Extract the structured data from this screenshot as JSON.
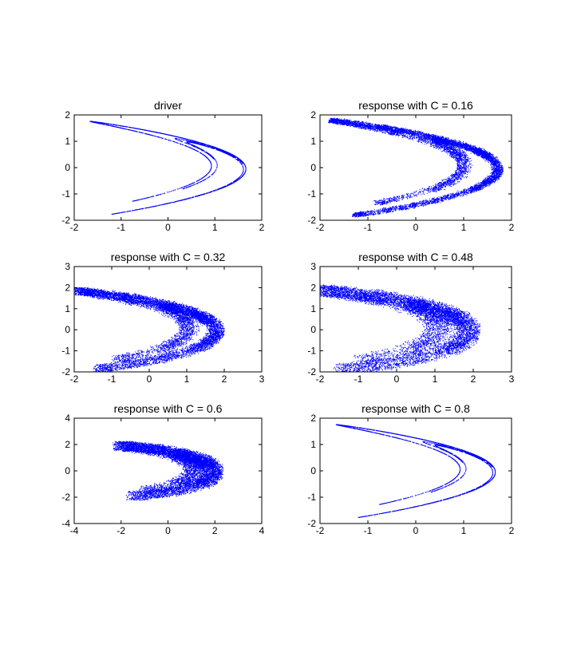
{
  "chart_data": [
    {
      "type": "scatter",
      "title": "driver",
      "xlim": [
        -2,
        2
      ],
      "ylim": [
        -2,
        2
      ],
      "xticks": [
        "-2",
        "-1",
        "0",
        "1",
        "2"
      ],
      "yticks": [
        "-2",
        "-1",
        "0",
        "1",
        "2"
      ],
      "color": "#0000ff",
      "attractor": {
        "a": 1.4,
        "b": 0.3,
        "spread": 0.0
      }
    },
    {
      "type": "scatter",
      "title": "response with C = 0.16",
      "xlim": [
        -2,
        2
      ],
      "ylim": [
        -2,
        2
      ],
      "xticks": [
        "-2",
        "-1",
        "0",
        "1",
        "2"
      ],
      "yticks": [
        "-2",
        "-1",
        "0",
        "1",
        "2"
      ],
      "color": "#0000ff",
      "attractor": {
        "a": 1.4,
        "b": 0.3,
        "spread": 0.12
      }
    },
    {
      "type": "scatter",
      "title": "response with C = 0.32",
      "xlim": [
        -2,
        3
      ],
      "ylim": [
        -2,
        3
      ],
      "xticks": [
        "-2",
        "-1",
        "0",
        "1",
        "2",
        "3"
      ],
      "yticks": [
        "-2",
        "-1",
        "0",
        "1",
        "2",
        "3"
      ],
      "color": "#0000ff",
      "attractor": {
        "a": 1.4,
        "b": 0.3,
        "spread": 0.25
      }
    },
    {
      "type": "scatter",
      "title": "response with C = 0.48",
      "xlim": [
        -2,
        3
      ],
      "ylim": [
        -2,
        3
      ],
      "xticks": [
        "-2",
        "-1",
        "0",
        "1",
        "2",
        "3"
      ],
      "yticks": [
        "-2",
        "-1",
        "0",
        "1",
        "2",
        "3"
      ],
      "color": "#0000ff",
      "attractor": {
        "a": 1.4,
        "b": 0.3,
        "spread": 0.38
      }
    },
    {
      "type": "scatter",
      "title": "response with C = 0.6",
      "xlim": [
        -4,
        4
      ],
      "ylim": [
        -4,
        4
      ],
      "xticks": [
        "-4",
        "-2",
        "0",
        "2",
        "4"
      ],
      "yticks": [
        "-4",
        "-2",
        "0",
        "2",
        "4"
      ],
      "color": "#0000ff",
      "attractor": {
        "a": 1.4,
        "b": 0.3,
        "spread": 0.5
      }
    },
    {
      "type": "scatter",
      "title": "response with C = 0.8",
      "xlim": [
        -2,
        2
      ],
      "ylim": [
        -2,
        2
      ],
      "xticks": [
        "-2",
        "-1",
        "0",
        "1",
        "2"
      ],
      "yticks": [
        "-2",
        "-1",
        "0",
        "1",
        "2"
      ],
      "color": "#0000ff",
      "attractor": {
        "a": 1.4,
        "b": 0.3,
        "spread": 0.0
      }
    }
  ]
}
